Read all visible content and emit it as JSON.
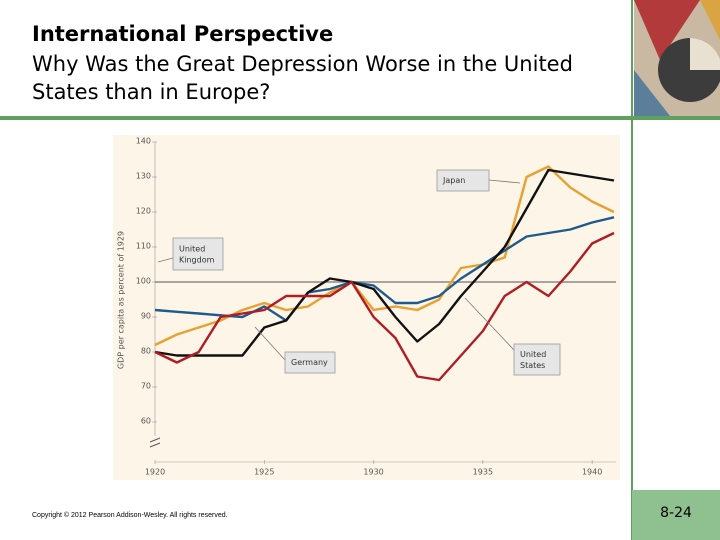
{
  "header": {
    "title": "International Perspective",
    "subtitle": "Why Was the Great Depression Worse in the United States than in Europe?"
  },
  "footer": {
    "copyright": "Copyright © 2012 Pearson Addison-Wesley. All rights reserved.",
    "page": "8-24"
  },
  "chart_data": {
    "type": "line",
    "ylabel": "GDP per capita as percent of 1929",
    "x": [
      1920,
      1921,
      1922,
      1923,
      1924,
      1925,
      1926,
      1927,
      1928,
      1929,
      1930,
      1931,
      1932,
      1933,
      1934,
      1935,
      1936,
      1937,
      1938,
      1939,
      1940,
      1941
    ],
    "xlim": [
      1920,
      1941
    ],
    "xticks": [
      1920,
      1925,
      1930,
      1935,
      1940
    ],
    "ylim": [
      50,
      140
    ],
    "yticks": [
      60,
      70,
      80,
      90,
      100,
      110,
      120,
      130,
      140
    ],
    "reference_line": 100,
    "series": [
      {
        "name": "Japan",
        "color": "#e8a030",
        "values": [
          82,
          85,
          87,
          89,
          92,
          94,
          92,
          93,
          97,
          100,
          92,
          93,
          92,
          95,
          104,
          105,
          107,
          130,
          133,
          127,
          123,
          120
        ]
      },
      {
        "name": "United Kingdom",
        "color": "#1f5a8c",
        "values": [
          92,
          91.5,
          91,
          90.5,
          90,
          93,
          89,
          97,
          98,
          100,
          99,
          94,
          94,
          96,
          101,
          105,
          109,
          113,
          114,
          115,
          117,
          118.5
        ]
      },
      {
        "name": "Germany",
        "color": "#111111",
        "values": [
          80,
          79,
          79,
          79,
          79,
          87,
          89,
          97,
          101,
          100,
          98,
          90,
          83,
          88,
          96,
          103,
          110,
          121,
          132,
          131,
          130,
          129
        ]
      },
      {
        "name": "United States",
        "color": "#b01c24",
        "values": [
          80,
          77,
          80,
          90,
          91,
          92,
          96,
          96,
          96,
          100,
          90,
          84,
          73,
          72,
          79,
          86,
          96,
          100,
          96,
          103,
          111,
          114
        ]
      }
    ]
  }
}
